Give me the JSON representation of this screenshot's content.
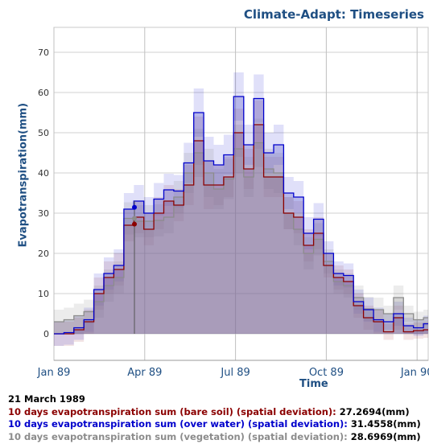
{
  "chart_data": {
    "type": "area",
    "title": "Climate-Adapt: Timeseries",
    "xlabel": "Time",
    "ylabel": "Evapotranspiration(mm)",
    "y_ticks": [
      0,
      10,
      20,
      30,
      40,
      50,
      60,
      70
    ],
    "ylim": [
      -7,
      77
    ],
    "x_ticks": [
      {
        "label": "Jan 89",
        "month": 0
      },
      {
        "label": "Apr 89",
        "month": 3
      },
      {
        "label": "Jul 89",
        "month": 6
      },
      {
        "label": "Oct 89",
        "month": 9
      },
      {
        "label": "Jan 90",
        "month": 12
      }
    ],
    "x_range_months": [
      0,
      12.35
    ],
    "grid": true,
    "step": true,
    "x_months": [
      0.0,
      0.33,
      0.66,
      0.99,
      1.32,
      1.65,
      1.98,
      2.31,
      2.64,
      2.97,
      3.3,
      3.63,
      3.96,
      4.29,
      4.62,
      4.95,
      5.28,
      5.61,
      5.94,
      6.27,
      6.6,
      6.93,
      7.26,
      7.59,
      7.92,
      8.25,
      8.58,
      8.91,
      9.24,
      9.57,
      9.9,
      10.23,
      10.56,
      10.89,
      11.22,
      11.55,
      11.88,
      12.21
    ],
    "series": [
      {
        "name": "10 days evapotranspiration sum (bare soil)",
        "color": "#8b0000",
        "values": [
          0,
          0,
          1,
          3,
          10,
          14,
          16,
          27,
          29,
          26,
          30,
          33,
          32,
          37,
          48,
          37,
          37,
          39,
          50,
          41,
          52,
          39,
          39,
          30,
          29,
          22,
          25,
          17,
          14,
          13,
          7,
          4,
          3,
          0.5,
          4,
          0.5,
          0.8,
          1
        ]
      },
      {
        "name": "10 days evapotranspiration sum (over water)",
        "color": "#0000cc",
        "values": [
          0,
          0.3,
          1.5,
          3.5,
          11,
          15,
          17,
          31,
          33,
          30,
          33.5,
          35.8,
          35.5,
          42.5,
          55,
          43,
          42,
          44.5,
          59,
          47,
          58.5,
          45,
          47,
          35,
          34,
          25,
          28.5,
          20,
          15,
          14.5,
          8,
          6,
          3.5,
          3,
          5,
          2,
          1.5,
          2.5
        ]
      },
      {
        "name": "10 days evapotranspiration sum (vegetation)",
        "color": "#8c8c8c",
        "values": [
          3,
          3.5,
          4.5,
          5.5,
          8,
          12,
          14,
          28.7,
          28,
          28,
          28.2,
          29,
          34,
          40,
          45,
          40,
          36,
          38.5,
          46,
          39,
          47.5,
          41,
          40,
          30,
          26,
          20,
          23.5,
          18,
          13,
          12,
          9,
          6.2,
          6,
          5,
          9,
          5,
          3.5,
          4
        ]
      }
    ],
    "deviation": [
      3,
      3,
      3,
      3,
      4,
      4,
      4,
      4,
      4,
      4,
      4,
      4,
      4,
      5,
      6,
      6,
      5,
      5,
      6,
      5,
      6,
      5,
      5,
      4,
      4,
      4,
      4,
      3,
      3,
      3,
      3,
      3,
      3,
      2,
      3,
      2,
      2,
      2
    ],
    "marker_month": 2.66,
    "annotations": {
      "date": "21 March 1989",
      "lines": [
        {
          "label": "10 days evapotranspiration sum (bare soil) (spatial deviation):",
          "value": "27.2694",
          "unit": "(mm)",
          "color": "#8b0000"
        },
        {
          "label": "10 days evapotranspiration sum (over water) (spatial deviation):",
          "value": "31.4558",
          "unit": "(mm)",
          "color": "#0000cc"
        },
        {
          "label": "10 days evapotranspiration sum (vegetation) (spatial deviation):",
          "value": "28.6969",
          "unit": "(mm)",
          "color": "#8c8c8c"
        }
      ]
    }
  }
}
